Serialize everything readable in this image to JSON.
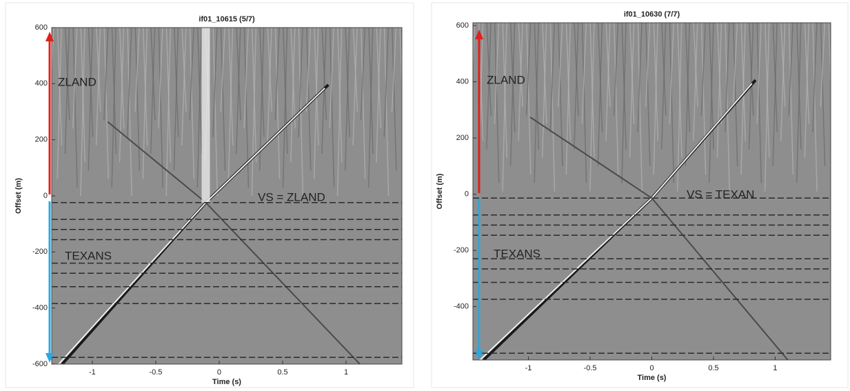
{
  "chart_data": [
    {
      "type": "image",
      "title": "if01_10615 (5/7)",
      "x_label": "Time (s)",
      "y_label": "Offset (m)",
      "xlim": [
        -1.32,
        1.44
      ],
      "ylim": [
        -600,
        600
      ],
      "xticks": [
        -1,
        -0.5,
        0,
        0.5,
        1
      ],
      "yticks": [
        -600,
        -400,
        -200,
        0,
        200,
        400,
        600
      ],
      "annotations": [
        {
          "text": "ZLAND",
          "color": "#e0201c"
        },
        {
          "text": "VS = ZLAND",
          "color": "#e0201c"
        },
        {
          "text": "TEXANS",
          "color": "#29a8e0"
        }
      ]
    },
    {
      "type": "image",
      "title": "if01_10630 (7/7)",
      "x_label": "Time (s)",
      "y_label": "Offset (m)",
      "xlim": [
        -1.45,
        1.45
      ],
      "ylim": [
        -590,
        610
      ],
      "xticks": [
        -1,
        -0.5,
        0,
        0.5,
        1
      ],
      "yticks": [
        -400,
        -200,
        0,
        200,
        400,
        600
      ],
      "annotations": [
        {
          "text": "ZLAND",
          "color": "#e0201c"
        },
        {
          "text": "VS = TEXAN",
          "color": "#29a8e0"
        },
        {
          "text": "TEXANS",
          "color": "#29a8e0"
        }
      ]
    }
  ]
}
